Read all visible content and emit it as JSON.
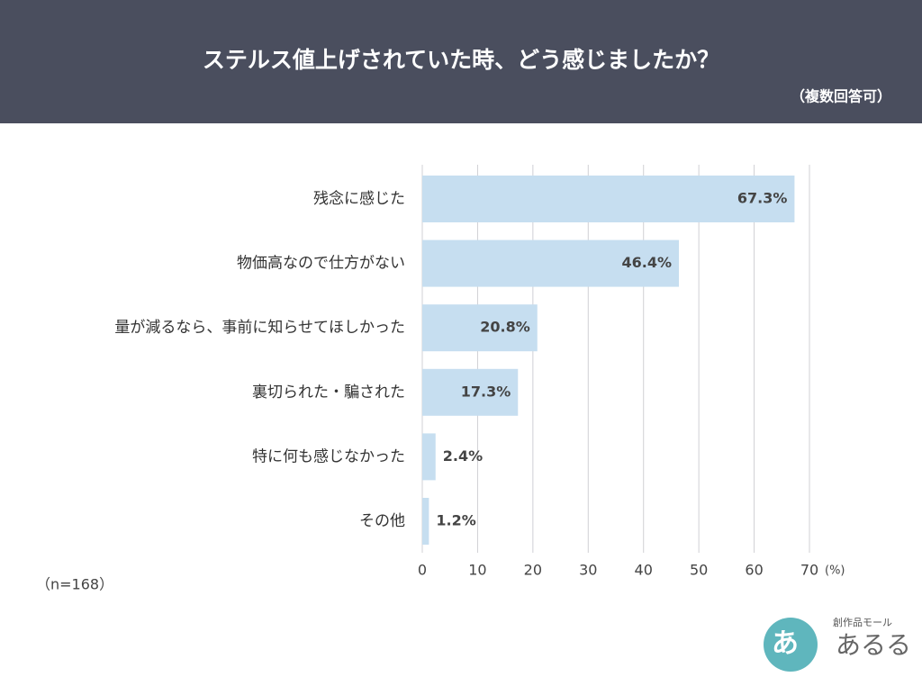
{
  "chart_data": {
    "type": "bar",
    "orientation": "horizontal",
    "title": "ステルス値上げされていた時、どう感じましたか？",
    "subtitle": "（複数回答可）",
    "categories": [
      "残念に感じた",
      "物価高なので仕方がない",
      "量が減るなら、事前に知らせてほしかった",
      "裏切られた・騙された",
      "特に何も感じなかった",
      "その他"
    ],
    "values": [
      67.3,
      46.4,
      20.8,
      17.3,
      2.4,
      1.2
    ],
    "value_labels": [
      "67.3%",
      "46.4%",
      "20.8%",
      "17.3%",
      "2.4%",
      "1.2%"
    ],
    "color": "#c6def0",
    "xlim": [
      0,
      70
    ],
    "xticks": [
      0,
      10,
      20,
      30,
      40,
      50,
      60,
      70
    ],
    "x_label": "(%)",
    "grid": true,
    "note": "（n=168）"
  },
  "logo": {
    "mark": "あ",
    "tagline": "創作品モール",
    "name": "あるる"
  }
}
